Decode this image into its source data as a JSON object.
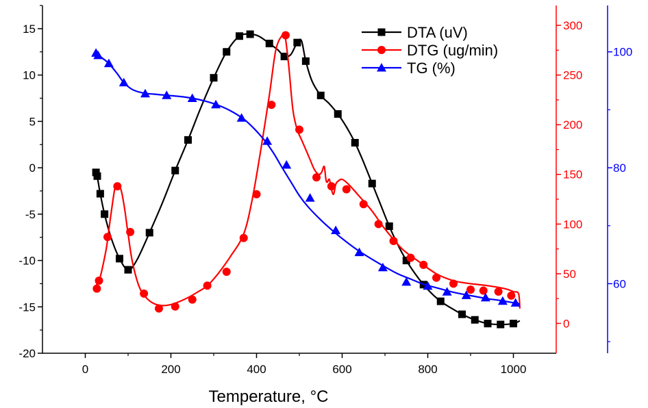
{
  "chart_data": {
    "type": "line",
    "title": "",
    "xlabel": "Temperature, °C",
    "xlim": [
      -100,
      1100
    ],
    "x_ticks": [
      0,
      200,
      400,
      600,
      800,
      1000
    ],
    "grid": false,
    "legend_position": "top-right",
    "axes": {
      "left": {
        "ylim": [
          -20,
          17.5
        ],
        "ticks": [
          -20,
          -15,
          -10,
          -5,
          0,
          5,
          10,
          15
        ],
        "color": "#000000"
      },
      "red": {
        "ylim": [
          -30,
          320
        ],
        "ticks": [
          0,
          50,
          100,
          150,
          200,
          250,
          300
        ],
        "color": "#ff0000"
      },
      "blue": {
        "ylim": [
          48,
          108
        ],
        "ticks": [
          60,
          80,
          100
        ],
        "color": "#0000ff"
      }
    },
    "series": [
      {
        "name": "DTA (uV)",
        "axis": "left",
        "color": "#000000",
        "marker": "square",
        "x": [
          25,
          28,
          30,
          35,
          45,
          60,
          80,
          100,
          120,
          150,
          180,
          210,
          240,
          270,
          300,
          330,
          360,
          385,
          405,
          430,
          450,
          465,
          480,
          495,
          505,
          515,
          530,
          550,
          570,
          590,
          610,
          630,
          650,
          670,
          690,
          710,
          730,
          750,
          770,
          790,
          810,
          830,
          850,
          880,
          910,
          940,
          970,
          1000,
          1015
        ],
        "y": [
          -0.5,
          -0.9,
          -1.5,
          -2.8,
          -5.0,
          -7.5,
          -9.8,
          -11.0,
          -10.0,
          -7.0,
          -3.8,
          -0.3,
          3.0,
          6.5,
          9.7,
          12.5,
          14.2,
          14.4,
          14.2,
          13.4,
          12.7,
          12.0,
          12.2,
          13.5,
          13.7,
          11.5,
          9.3,
          7.8,
          6.9,
          5.8,
          4.4,
          2.7,
          0.6,
          -1.7,
          -4.0,
          -6.3,
          -8.3,
          -10.0,
          -11.4,
          -12.6,
          -13.6,
          -14.4,
          -15.0,
          -15.8,
          -16.4,
          -16.8,
          -16.9,
          -16.8,
          -16.5
        ],
        "marker_indices": [
          0,
          1,
          3,
          4,
          6,
          7,
          9,
          11,
          12,
          14,
          15,
          16,
          17,
          19,
          21,
          23,
          25,
          27,
          29,
          31,
          33,
          35,
          37,
          39,
          41,
          43,
          44,
          45,
          46,
          47
        ]
      },
      {
        "name": "DTG (ug/min)",
        "axis": "red",
        "color": "#ff0000",
        "marker": "circle",
        "x": [
          25,
          27,
          30,
          35,
          42,
          50,
          60,
          70,
          78,
          85,
          92,
          100,
          110,
          125,
          140,
          160,
          180,
          200,
          220,
          240,
          260,
          285,
          310,
          340,
          370,
          390,
          410,
          430,
          445,
          460,
          467,
          475,
          485,
          495,
          505,
          515,
          525,
          535,
          545,
          552,
          558,
          562,
          565,
          570,
          575,
          580,
          585,
          590,
          600,
          615,
          640,
          670,
          700,
          740,
          780,
          820,
          860,
          900,
          940,
          980,
          1000,
          1012,
          1015
        ],
        "y": [
          32,
          40,
          43,
          47,
          60,
          78,
          110,
          138,
          140,
          132,
          115,
          90,
          62,
          38,
          27,
          20,
          18,
          19,
          22,
          26,
          31,
          38,
          50,
          68,
          90,
          125,
          175,
          230,
          275,
          290,
          288,
          260,
          215,
          195,
          185,
          175,
          165,
          155,
          150,
          152,
          158,
          145,
          142,
          145,
          135,
          130,
          140,
          143,
          145,
          140,
          128,
          113,
          95,
          75,
          62,
          50,
          43,
          40,
          38,
          35,
          32,
          30,
          15
        ],
        "markers": {
          "x": [
            27,
            32,
            52,
            75,
            105,
            137,
            172,
            210,
            250,
            285,
            330,
            370,
            400,
            435,
            468,
            500,
            540,
            575,
            610,
            650,
            685,
            720,
            760,
            790,
            820,
            860,
            900,
            930,
            965,
            995
          ],
          "y": [
            35,
            43,
            87,
            138,
            92,
            30,
            15,
            17,
            24,
            38,
            52,
            86,
            130,
            220,
            290,
            195,
            147,
            138,
            135,
            120,
            100,
            83,
            66,
            59,
            46,
            40,
            34,
            33,
            32,
            28
          ]
        }
      },
      {
        "name": "TG (%)",
        "axis": "blue",
        "color": "#0000ff",
        "marker": "triangle",
        "x": [
          25,
          30,
          40,
          55,
          75,
          90,
          110,
          135,
          160,
          190,
          220,
          250,
          280,
          310,
          340,
          370,
          395,
          420,
          440,
          460,
          480,
          500,
          520,
          550,
          580,
          610,
          640,
          670,
          700,
          730,
          760,
          790,
          820,
          850,
          880,
          910,
          940,
          970,
          1000,
          1015
        ],
        "y": [
          99.8,
          99.5,
          98.9,
          98.0,
          96.2,
          94.7,
          93.5,
          92.9,
          92.7,
          92.5,
          92.3,
          92.0,
          91.5,
          90.8,
          89.8,
          88.4,
          86.7,
          84.6,
          82.5,
          80.0,
          77.6,
          75.2,
          73.3,
          71.0,
          69.0,
          67.2,
          65.6,
          64.2,
          62.9,
          61.7,
          60.8,
          59.9,
          59.3,
          58.7,
          58.2,
          57.8,
          57.4,
          57.1,
          56.7,
          56.5
        ],
        "markers": {
          "x": [
            25,
            30,
            55,
            90,
            140,
            190,
            250,
            305,
            365,
            425,
            470,
            525,
            585,
            640,
            695,
            750,
            800,
            845,
            890,
            935,
            975,
            1005
          ],
          "y": [
            99.8,
            99.4,
            98.0,
            94.7,
            92.8,
            92.5,
            92.0,
            90.9,
            88.6,
            84.6,
            80.5,
            74.8,
            69.2,
            65.4,
            62.8,
            60.3,
            59.6,
            58.6,
            58.0,
            57.6,
            57.0,
            56.7
          ]
        }
      }
    ]
  }
}
